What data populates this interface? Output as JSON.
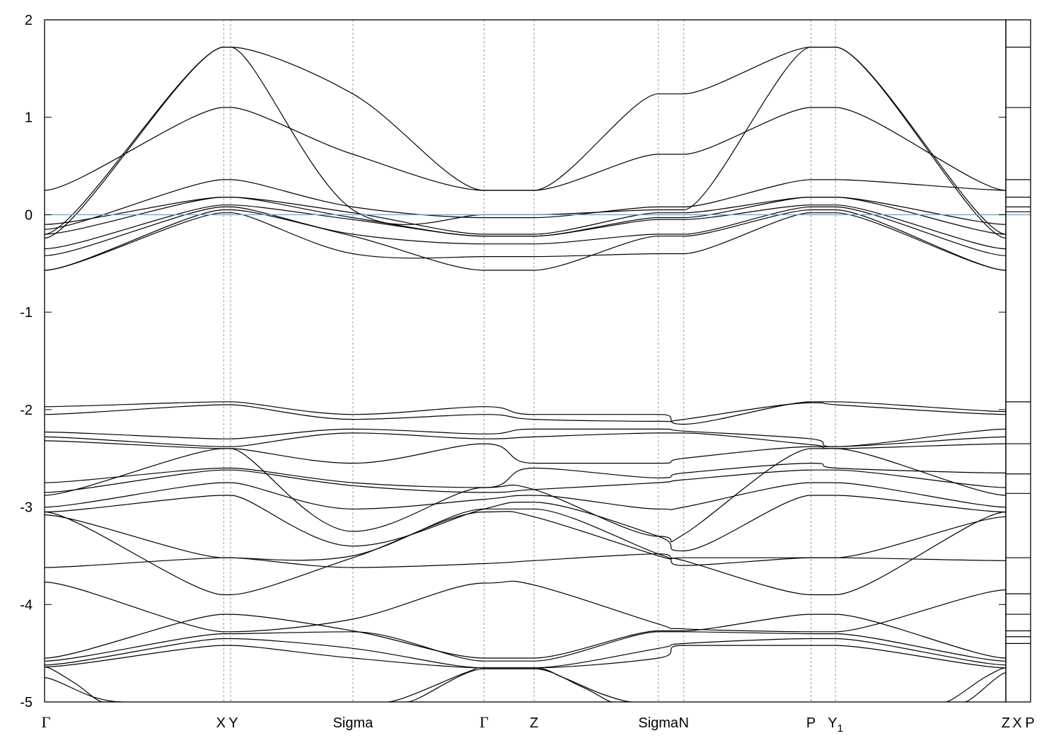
{
  "colors": {
    "fermi": "#5fb3c0",
    "band": "#000000",
    "kline": "#999999"
  },
  "chart_data": {
    "type": "line",
    "title": "",
    "xlabel": "",
    "ylabel": "",
    "ylim": [
      -5,
      2
    ],
    "yticks": [
      "2",
      "1",
      "0",
      "-1",
      "-2",
      "-3",
      "-4",
      "-5"
    ],
    "grid": false,
    "legend": "none",
    "fermi_level": 0,
    "xlim": [
      0,
      9.82
    ],
    "kpoints": [
      {
        "label": "Γ",
        "x": 0
      },
      {
        "label": "X",
        "x": 1.83
      },
      {
        "label": "Y",
        "x": 1.9
      },
      {
        "label": "Sigma",
        "x": 3.15
      },
      {
        "label": "Γ",
        "x": 4.49
      },
      {
        "label": "Z",
        "x": 5.0
      },
      {
        "label": "Sigma",
        "x": 6.27
      },
      {
        "label": "N",
        "x": 6.53
      },
      {
        "label": "P",
        "x": 7.83
      },
      {
        "label": "Y",
        "sub": "1",
        "x": 8.08
      },
      {
        "label": "Z",
        "x": 9.82
      }
    ],
    "dos_panel_labels": [
      "X",
      "P"
    ],
    "dos_panel_levels": [
      1.72,
      1.1,
      0.36,
      0.18,
      0.08,
      0.03,
      -1.92,
      -2.35,
      -2.66,
      -2.86,
      -3.52,
      -3.89,
      -4.1,
      -4.27,
      -4.33,
      -4.4
    ],
    "series": [
      {
        "x": [
          0,
          1.83,
          1.9,
          3.15,
          4.49,
          5.0,
          6.27,
          6.53,
          7.83,
          8.08,
          9.82
        ],
        "y": [
          0.25,
          1.1,
          1.1,
          0.62,
          0.25,
          0.25,
          0.62,
          0.62,
          1.1,
          1.1,
          0.25
        ]
      },
      {
        "x": [
          0,
          1.83,
          1.9,
          3.15,
          4.49,
          5.0,
          6.27,
          6.53,
          7.83,
          8.08,
          9.82
        ],
        "y": [
          -0.2,
          1.72,
          1.72,
          1.24,
          0.25,
          0.25,
          1.24,
          1.24,
          1.72,
          1.72,
          -0.2
        ]
      },
      {
        "x": [
          0,
          1.83,
          1.9,
          3.15,
          4.49,
          5.0,
          6.27,
          6.53,
          7.83,
          8.08,
          9.82
        ],
        "y": [
          -0.24,
          1.72,
          1.72,
          0.05,
          0.0,
          0.0,
          0.05,
          0.05,
          1.72,
          1.72,
          -0.24
        ]
      },
      {
        "x": [
          0,
          1.83,
          1.9,
          3.15,
          4.49,
          5.0,
          6.27,
          6.53,
          7.83,
          8.08,
          9.82
        ],
        "y": [
          -0.15,
          0.36,
          0.36,
          0.08,
          -0.03,
          -0.03,
          0.08,
          0.08,
          0.36,
          0.36,
          0.25
        ]
      },
      {
        "x": [
          0,
          1.83,
          1.9,
          3.15,
          4.49,
          5.0,
          6.27,
          6.53,
          7.83,
          8.08,
          9.82
        ],
        "y": [
          -0.1,
          0.18,
          0.18,
          0.02,
          -0.2,
          -0.2,
          0.02,
          0.02,
          0.18,
          0.18,
          -0.1
        ]
      },
      {
        "x": [
          0,
          1.83,
          1.9,
          3.15,
          4.49,
          5.0,
          6.27,
          6.53,
          7.83,
          8.08,
          9.82
        ],
        "y": [
          -0.2,
          0.18,
          0.18,
          -0.03,
          -0.22,
          -0.22,
          -0.03,
          -0.03,
          0.18,
          0.18,
          -0.2
        ]
      },
      {
        "x": [
          0,
          1.83,
          1.9,
          3.15,
          4.49,
          5.0,
          6.27,
          6.53,
          7.83,
          8.08,
          9.82
        ],
        "y": [
          -0.35,
          0.1,
          0.1,
          -0.05,
          -0.22,
          -0.22,
          -0.05,
          -0.05,
          0.1,
          0.1,
          -0.35
        ]
      },
      {
        "x": [
          0,
          1.83,
          1.9,
          3.15,
          4.49,
          5.0,
          6.27,
          6.53,
          7.83,
          8.08,
          9.82
        ],
        "y": [
          -0.42,
          0.08,
          0.08,
          -0.2,
          -0.3,
          -0.3,
          -0.2,
          -0.2,
          0.08,
          0.08,
          -0.42
        ]
      },
      {
        "x": [
          0,
          1.83,
          1.9,
          3.15,
          4.49,
          5.0,
          6.27,
          6.53,
          7.83,
          8.08,
          9.82
        ],
        "y": [
          -0.57,
          0.05,
          0.05,
          -0.22,
          -0.57,
          -0.57,
          -0.22,
          -0.22,
          0.05,
          0.05,
          -0.57
        ]
      },
      {
        "x": [
          0,
          1.83,
          1.9,
          3.15,
          4.49,
          5.0,
          6.27,
          6.53,
          7.83,
          8.08,
          9.82
        ],
        "y": [
          -0.57,
          0.02,
          0.02,
          -0.4,
          -0.43,
          -0.43,
          -0.4,
          -0.4,
          0.02,
          0.02,
          -0.57
        ]
      },
      {
        "x": [
          0,
          1.83,
          1.9,
          3.15,
          4.49,
          5.0,
          6.27,
          6.53,
          7.83,
          8.08,
          9.82
        ],
        "y": [
          -1.97,
          -1.92,
          -1.92,
          -2.05,
          -1.97,
          -2.05,
          -2.05,
          -2.15,
          -1.92,
          -1.92,
          -2.02
        ]
      },
      {
        "x": [
          0,
          1.83,
          1.9,
          3.15,
          4.49,
          5.0,
          6.27,
          6.53,
          7.83,
          8.08,
          9.82
        ],
        "y": [
          -2.05,
          -1.95,
          -1.95,
          -2.1,
          -2.05,
          -2.1,
          -2.12,
          -2.1,
          -1.93,
          -1.95,
          -2.05
        ]
      },
      {
        "x": [
          0,
          1.83,
          1.9,
          3.15,
          4.49,
          5.0,
          6.27,
          6.53,
          7.83,
          8.08,
          9.82
        ],
        "y": [
          -2.23,
          -2.3,
          -2.3,
          -2.2,
          -2.25,
          -2.2,
          -2.2,
          -2.22,
          -2.3,
          -2.38,
          -2.2
        ]
      },
      {
        "x": [
          0,
          1.83,
          1.9,
          3.15,
          4.49,
          5.0,
          6.27,
          6.53,
          7.83,
          8.08,
          9.82
        ],
        "y": [
          -2.28,
          -2.38,
          -2.38,
          -2.24,
          -2.3,
          -2.28,
          -2.24,
          -2.24,
          -2.36,
          -2.38,
          -2.28
        ]
      },
      {
        "x": [
          0,
          1.83,
          1.9,
          3.15,
          4.49,
          5.0,
          6.27,
          6.53,
          7.83,
          8.08,
          9.82
        ],
        "y": [
          -2.32,
          -2.4,
          -2.4,
          -2.55,
          -2.35,
          -2.55,
          -2.55,
          -2.5,
          -2.38,
          -2.4,
          -2.35
        ]
      },
      {
        "x": [
          0,
          1.83,
          1.9,
          3.15,
          4.49,
          5.0,
          6.27,
          6.53,
          7.83,
          8.08,
          9.82
        ],
        "y": [
          -2.75,
          -2.6,
          -2.6,
          -2.75,
          -2.8,
          -2.6,
          -2.7,
          -2.65,
          -2.55,
          -2.6,
          -2.65
        ]
      },
      {
        "x": [
          0,
          1.83,
          1.9,
          3.15,
          4.49,
          5.0,
          6.27,
          6.53,
          7.83,
          8.08,
          9.82
        ],
        "y": [
          -2.85,
          -2.62,
          -2.62,
          -2.78,
          -2.85,
          -2.82,
          -2.75,
          -2.72,
          -2.62,
          -2.62,
          -2.8
        ]
      },
      {
        "x": [
          0,
          1.83,
          1.9,
          3.15,
          4.49,
          5.0,
          6.27,
          6.53,
          7.83,
          8.08,
          9.82
        ],
        "y": [
          -2.88,
          -2.4,
          -2.4,
          -3.25,
          -2.8,
          -2.82,
          -3.3,
          -3.28,
          -2.4,
          -2.4,
          -2.88
        ]
      },
      {
        "x": [
          0,
          1.83,
          1.9,
          3.15,
          4.49,
          5.0,
          6.27,
          6.53,
          7.83,
          8.08,
          9.82
        ],
        "y": [
          -3.0,
          -2.75,
          -2.75,
          -3.02,
          -2.92,
          -2.88,
          -3.02,
          -3.0,
          -2.75,
          -2.75,
          -3.0
        ]
      },
      {
        "x": [
          0,
          1.83,
          1.9,
          3.15,
          4.49,
          5.0,
          6.27,
          6.53,
          7.83,
          8.08,
          9.82
        ],
        "y": [
          -3.05,
          -2.88,
          -2.88,
          -3.4,
          -3.02,
          -2.95,
          -3.3,
          -3.45,
          -2.88,
          -2.88,
          -3.05
        ]
      },
      {
        "x": [
          0,
          1.83,
          1.9,
          3.15,
          4.49,
          5.0,
          6.27,
          6.53,
          7.83,
          8.08,
          9.82
        ],
        "y": [
          -3.08,
          -3.52,
          -3.52,
          -3.5,
          -3.02,
          -3.02,
          -3.48,
          -3.52,
          -3.52,
          -3.52,
          -3.1
        ]
      },
      {
        "x": [
          0,
          1.83,
          1.9,
          3.15,
          4.49,
          5.0,
          6.27,
          6.53,
          7.83,
          8.08,
          9.82
        ],
        "y": [
          -3.62,
          -3.52,
          -3.52,
          -3.62,
          -3.58,
          -3.55,
          -3.48,
          -3.6,
          -3.52,
          -3.52,
          -3.55
        ]
      },
      {
        "x": [
          0,
          1.83,
          1.9,
          3.15,
          4.49,
          5.0,
          6.27,
          6.53,
          7.83,
          8.08,
          9.82
        ],
        "y": [
          -3.05,
          -3.9,
          -3.9,
          -3.52,
          -3.05,
          -3.1,
          -3.5,
          -3.55,
          -3.9,
          -3.9,
          -3.05
        ]
      },
      {
        "x": [
          0,
          1.83,
          1.9,
          3.15,
          4.49,
          5.0,
          6.27,
          6.53,
          7.83,
          8.08,
          9.82
        ],
        "y": [
          -3.77,
          -4.28,
          -4.28,
          -4.15,
          -3.78,
          -3.8,
          -4.2,
          -4.25,
          -4.28,
          -4.28,
          -3.85
        ]
      },
      {
        "x": [
          0,
          1.83,
          1.9,
          3.15,
          4.49,
          5.0,
          6.27,
          6.53,
          7.83,
          8.08,
          9.82
        ],
        "y": [
          -4.55,
          -4.1,
          -4.1,
          -4.27,
          -4.55,
          -4.55,
          -4.27,
          -4.27,
          -4.1,
          -4.1,
          -4.55
        ]
      },
      {
        "x": [
          0,
          1.83,
          1.9,
          3.15,
          4.49,
          5.0,
          6.27,
          6.53,
          7.83,
          8.08,
          9.82
        ],
        "y": [
          -4.58,
          -4.3,
          -4.3,
          -4.28,
          -4.58,
          -4.58,
          -4.28,
          -4.28,
          -4.3,
          -4.3,
          -4.58
        ]
      },
      {
        "x": [
          0,
          1.83,
          1.9,
          3.15,
          4.49,
          5.0,
          6.27,
          6.53,
          7.83,
          8.08,
          9.82
        ],
        "y": [
          -4.62,
          -4.35,
          -4.35,
          -4.45,
          -4.65,
          -4.65,
          -4.45,
          -4.4,
          -4.35,
          -4.35,
          -4.62
        ]
      },
      {
        "x": [
          0,
          1.83,
          1.9,
          3.15,
          4.49,
          5.0,
          6.27,
          6.53,
          7.83,
          8.08,
          9.82
        ],
        "y": [
          -4.64,
          -4.42,
          -4.42,
          -4.55,
          -4.65,
          -4.65,
          -4.55,
          -4.42,
          -4.42,
          -4.42,
          -4.65
        ]
      },
      {
        "x": [
          0,
          0.3,
          0.6,
          0.7
        ],
        "y": [
          -4.64,
          -4.8,
          -5.0,
          -5.0
        ]
      },
      {
        "x": [
          0,
          0.5,
          0.8
        ],
        "y": [
          -4.75,
          -4.95,
          -5.0
        ]
      },
      {
        "x": [
          3.5,
          4.3,
          4.49,
          5.0,
          5.3,
          5.7,
          6.0
        ],
        "y": [
          -5.0,
          -4.7,
          -4.65,
          -4.65,
          -4.75,
          -4.92,
          -5.0
        ]
      },
      {
        "x": [
          3.7,
          4.49,
          5.0,
          5.5,
          5.8
        ],
        "y": [
          -5.0,
          -4.66,
          -4.66,
          -4.85,
          -5.0
        ]
      },
      {
        "x": [
          9.2,
          9.6,
          9.82
        ],
        "y": [
          -5.0,
          -4.75,
          -4.65
        ]
      },
      {
        "x": [
          9.4,
          9.82
        ],
        "y": [
          -5.0,
          -4.7
        ]
      }
    ]
  }
}
